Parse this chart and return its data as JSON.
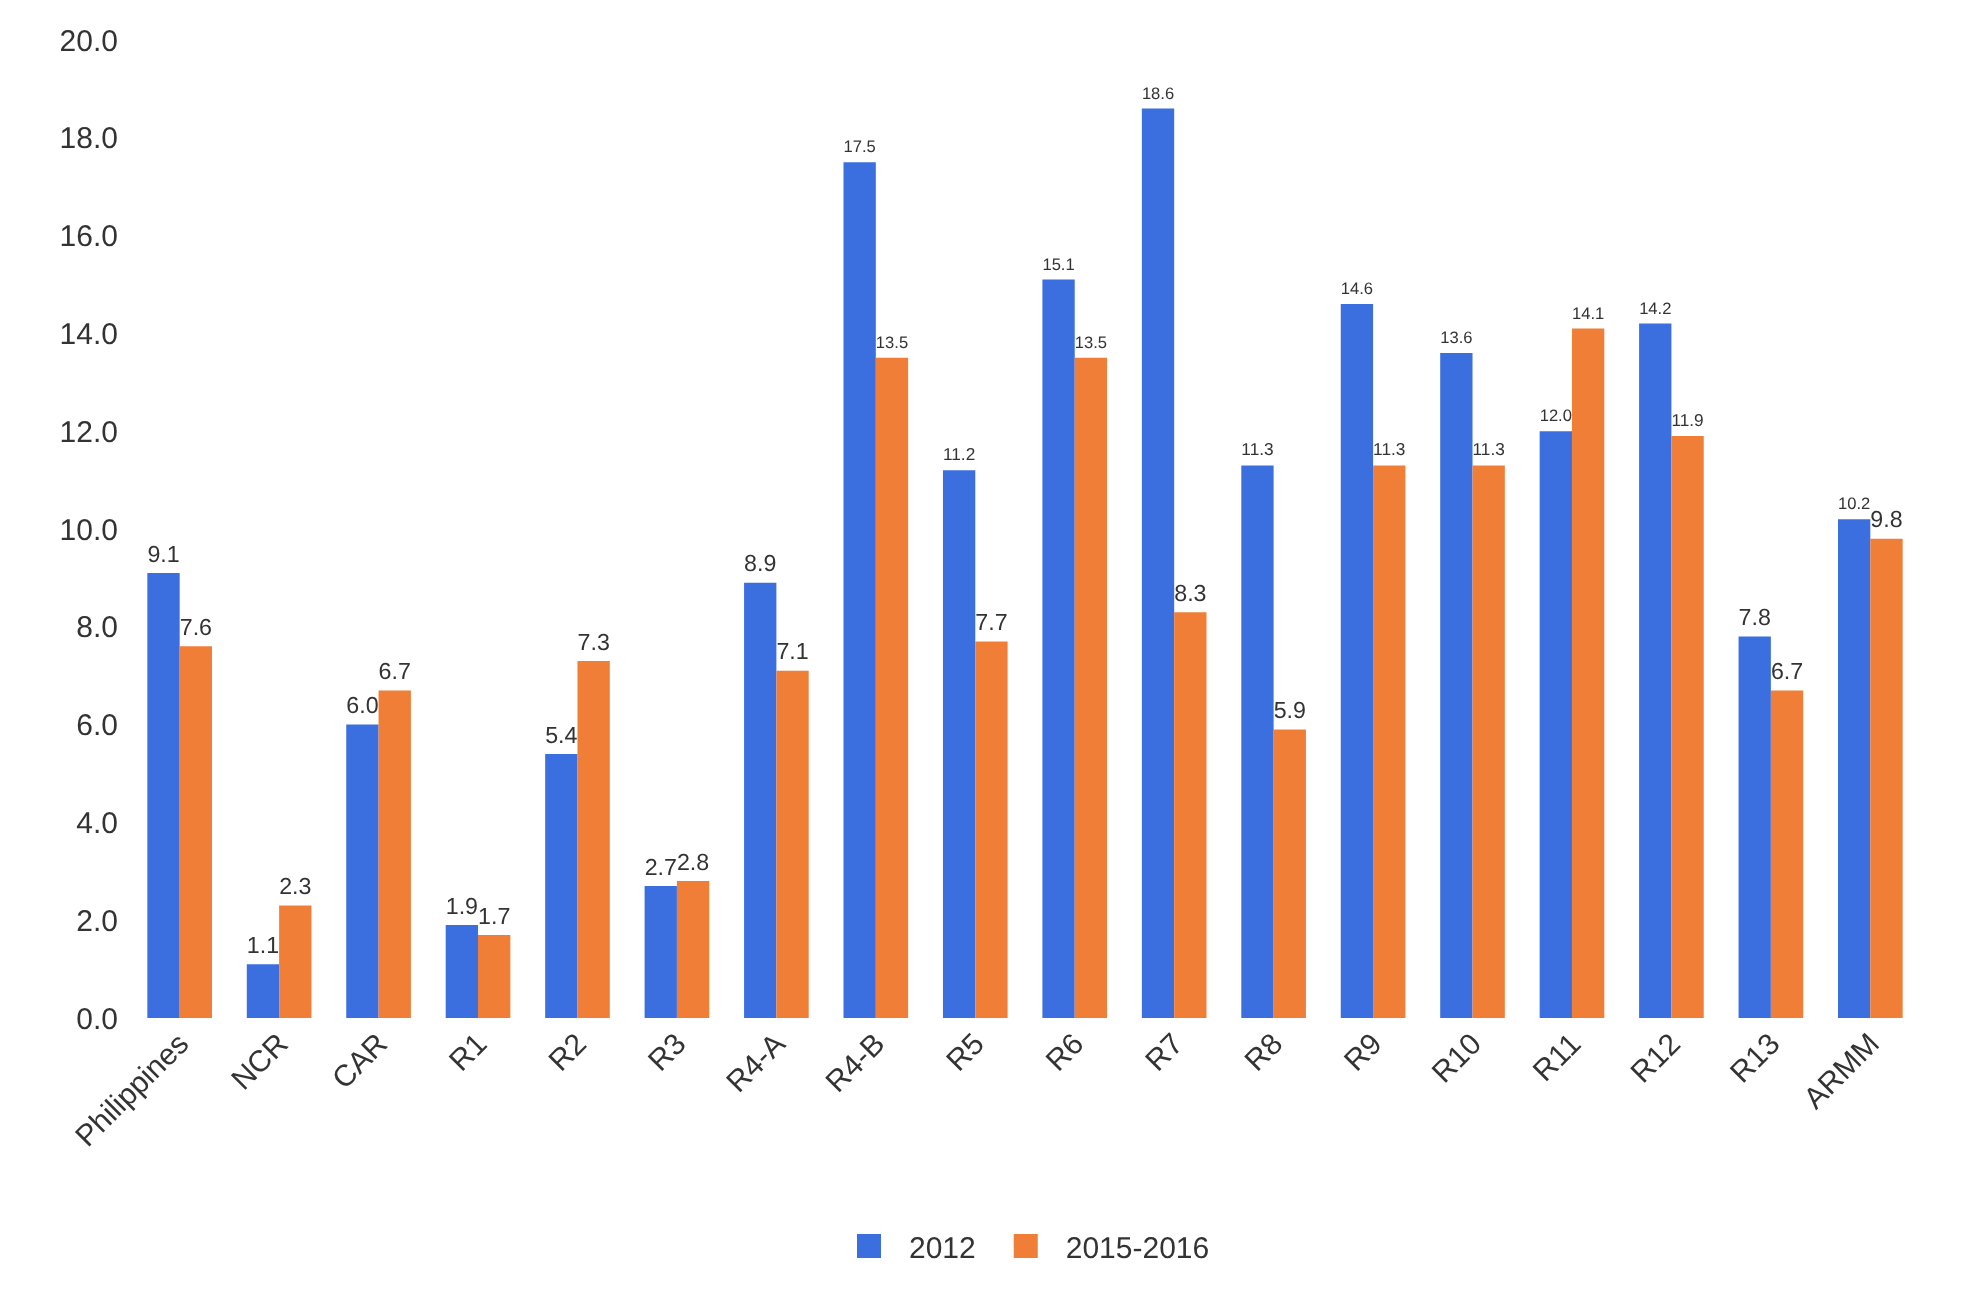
{
  "chart_data": {
    "type": "bar",
    "categories": [
      "Philippines",
      "NCR",
      "CAR",
      "R1",
      "R2",
      "R3",
      "R4-A",
      "R4-B",
      "R5",
      "R6",
      "R7",
      "R8",
      "R9",
      "R10",
      "R11",
      "R12",
      "R13",
      "ARMM"
    ],
    "series": [
      {
        "name": "2012",
        "color": "#3b6fe0",
        "values": [
          9.1,
          1.1,
          6.0,
          1.9,
          5.4,
          2.7,
          8.9,
          17.5,
          11.2,
          15.1,
          18.6,
          11.3,
          14.6,
          13.6,
          12.0,
          14.2,
          7.8,
          10.2
        ],
        "value_labels": [
          "9.1",
          "1.1",
          "6.0",
          "1.9",
          "5.4",
          "2.7",
          "8.9",
          "17.5",
          "11.2",
          "15.1",
          "18.6",
          "11.3",
          "14.6",
          "13.6",
          "12.0",
          "14.2",
          "7.8",
          "10.2"
        ]
      },
      {
        "name": "2015-2016",
        "color": "#f07e36",
        "values": [
          7.6,
          2.3,
          6.7,
          1.7,
          7.3,
          2.8,
          7.1,
          13.5,
          7.7,
          13.5,
          8.3,
          5.9,
          11.3,
          11.3,
          14.1,
          11.9,
          6.7,
          9.8
        ],
        "value_labels": [
          "7.6",
          "2.3",
          "6.7",
          "1.7",
          "7.3",
          "2.8",
          "7.1",
          "13.5",
          "7.7",
          "13.5",
          "8.3",
          "5.9",
          "11.3",
          "11.3",
          "14.1",
          "11.9",
          "6.7",
          "9.8"
        ]
      }
    ],
    "ylim": [
      0,
      20
    ],
    "yticks": [
      {
        "value": 0,
        "label": "0.0"
      },
      {
        "value": 2,
        "label": "2.0"
      },
      {
        "value": 4,
        "label": "4.0"
      },
      {
        "value": 6,
        "label": "6.0"
      },
      {
        "value": 8,
        "label": "8.0"
      },
      {
        "value": 10,
        "label": "10.0"
      },
      {
        "value": 12,
        "label": "12.0"
      },
      {
        "value": 14,
        "label": "14.0"
      },
      {
        "value": 16,
        "label": "16.0"
      },
      {
        "value": 18,
        "label": "18.0"
      },
      {
        "value": 20,
        "label": "20.0"
      }
    ],
    "grid": false,
    "legend": "bottom"
  }
}
